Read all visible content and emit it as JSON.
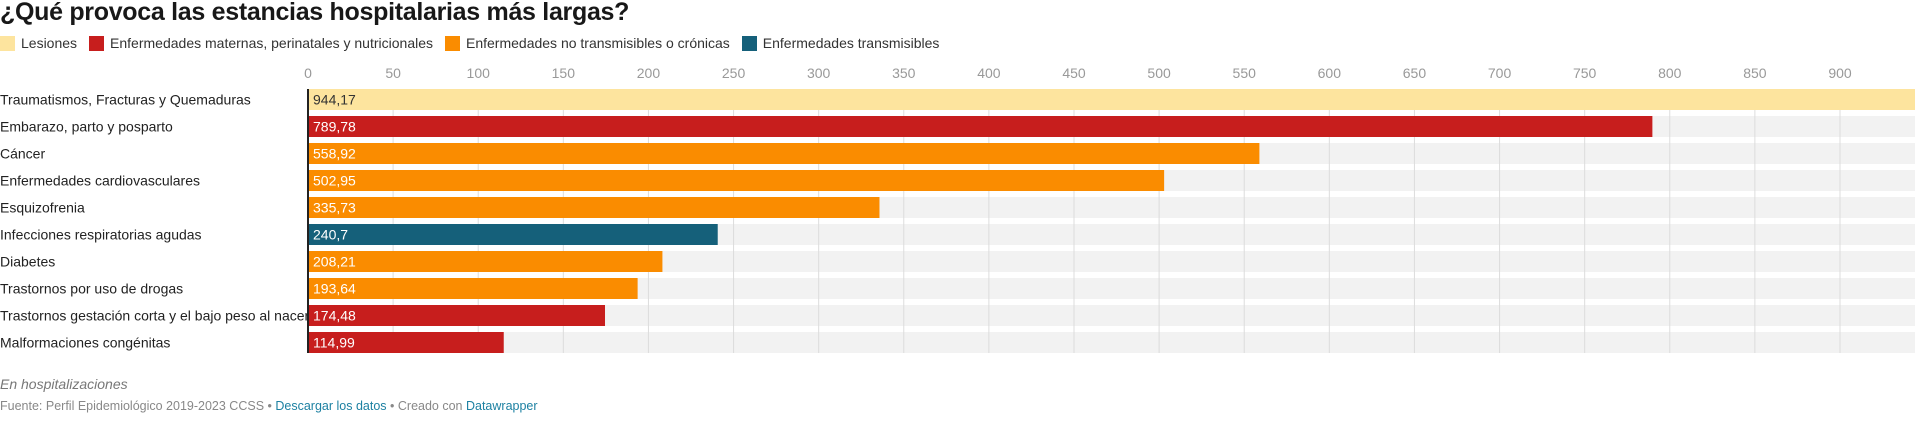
{
  "title": "¿Qué provoca las estancias hospitalarias más largas?",
  "legend": [
    {
      "label": "Lesiones",
      "color": "#fde49e"
    },
    {
      "label": "Enfermedades maternas, perinatales y nutricionales",
      "color": "#c71e1d"
    },
    {
      "label": "Enfermedades no transmisibles o crónicas",
      "color": "#fa8c00"
    },
    {
      "label": "Enfermedades transmisibles",
      "color": "#15607a"
    }
  ],
  "chart_data": {
    "type": "bar",
    "orientation": "horizontal",
    "xlim": [
      0,
      944.17
    ],
    "ticks": [
      0,
      50,
      100,
      150,
      200,
      250,
      300,
      350,
      400,
      450,
      500,
      550,
      600,
      650,
      700,
      750,
      800,
      850,
      900
    ],
    "grid": true,
    "categories": [
      "Traumatismos, Fracturas y Quemaduras",
      "Embarazo, parto y posparto",
      "Cáncer",
      "Enfermedades cardiovasculares",
      "Esquizofrenia",
      "Infecciones respiratorias agudas",
      "Diabetes",
      "Trastornos por uso de drogas",
      "Trastornos gestación corta y el bajo peso al nacer",
      "Malformaciones congénitas"
    ],
    "values": [
      944.17,
      789.78,
      558.92,
      502.95,
      335.73,
      240.7,
      208.21,
      193.64,
      174.48,
      114.99
    ],
    "value_labels": [
      "944,17",
      "789,78",
      "558,92",
      "502,95",
      "335,73",
      "240,7",
      "208,21",
      "193,64",
      "174,48",
      "114,99"
    ],
    "groups": [
      0,
      1,
      2,
      2,
      2,
      3,
      2,
      2,
      1,
      1
    ]
  },
  "notes": "En hospitalizaciones",
  "footer": {
    "source": "Fuente: Perfil Epidemiológico 2019-2023 CCSS",
    "sep": " • ",
    "download": "Descargar los datos",
    "created": "Creado con ",
    "datawrapper": "Datawrapper"
  }
}
